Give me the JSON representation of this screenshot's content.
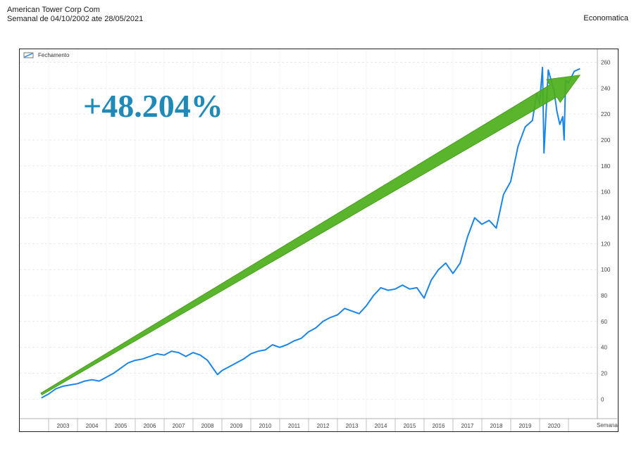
{
  "header": {
    "title": "American Tower Corp Com",
    "subtitle": "Semanal de 04/10/2002 ate 28/05/2021",
    "source": "Economatica"
  },
  "chart_data": {
    "type": "line",
    "legend": {
      "label": "Fechamento",
      "placement": "top-left"
    },
    "annotation": "+48.204%",
    "xlabel": "Semana",
    "x_ticks": [
      "2003",
      "2004",
      "2005",
      "2006",
      "2007",
      "2008",
      "2009",
      "2010",
      "2011",
      "2012",
      "2013",
      "2014",
      "2015",
      "2016",
      "2017",
      "2018",
      "2019",
      "2020"
    ],
    "y_ticks": [
      0,
      20,
      40,
      60,
      80,
      100,
      120,
      140,
      160,
      180,
      200,
      220,
      240,
      260
    ],
    "ylim": [
      -15,
      270
    ],
    "xlim": [
      2002.0,
      2022.0
    ],
    "grid": true,
    "line_color": "#1a86e8",
    "arrow_color": "#4caf1a",
    "series": [
      {
        "name": "Fechamento",
        "x": [
          2002.75,
          2003.0,
          2003.25,
          2003.5,
          2003.75,
          2004.0,
          2004.25,
          2004.5,
          2004.75,
          2005.0,
          2005.25,
          2005.5,
          2005.75,
          2006.0,
          2006.25,
          2006.5,
          2006.75,
          2007.0,
          2007.25,
          2007.5,
          2007.75,
          2008.0,
          2008.25,
          2008.5,
          2008.75,
          2008.85,
          2009.0,
          2009.25,
          2009.5,
          2009.75,
          2010.0,
          2010.25,
          2010.5,
          2010.75,
          2011.0,
          2011.25,
          2011.5,
          2011.75,
          2012.0,
          2012.25,
          2012.5,
          2012.75,
          2013.0,
          2013.25,
          2013.5,
          2013.75,
          2014.0,
          2014.25,
          2014.5,
          2014.75,
          2015.0,
          2015.25,
          2015.5,
          2015.75,
          2016.0,
          2016.25,
          2016.5,
          2016.75,
          2017.0,
          2017.25,
          2017.5,
          2017.75,
          2018.0,
          2018.25,
          2018.5,
          2018.75,
          2019.0,
          2019.25,
          2019.5,
          2019.75,
          2019.9,
          2020.0,
          2020.1,
          2020.15,
          2020.3,
          2020.5,
          2020.6,
          2020.7,
          2020.8,
          2020.85,
          2020.9,
          2021.0,
          2021.2,
          2021.4
        ],
        "y": [
          1,
          4,
          8,
          10,
          11,
          12,
          14,
          15,
          14,
          17,
          20,
          24,
          28,
          30,
          31,
          33,
          35,
          34,
          37,
          36,
          33,
          36,
          34,
          30,
          22,
          19,
          22,
          25,
          28,
          31,
          35,
          37,
          38,
          42,
          40,
          42,
          45,
          47,
          52,
          55,
          60,
          63,
          65,
          70,
          68,
          66,
          72,
          80,
          86,
          84,
          85,
          88,
          85,
          86,
          78,
          92,
          100,
          105,
          97,
          105,
          125,
          140,
          135,
          138,
          132,
          158,
          168,
          195,
          210,
          215,
          236,
          228,
          256,
          190,
          254,
          238,
          222,
          212,
          218,
          200,
          246,
          244,
          253,
          255
        ]
      }
    ],
    "trend_arrow": {
      "from": [
        2002.75,
        4
      ],
      "to": [
        2021.4,
        250
      ]
    }
  }
}
